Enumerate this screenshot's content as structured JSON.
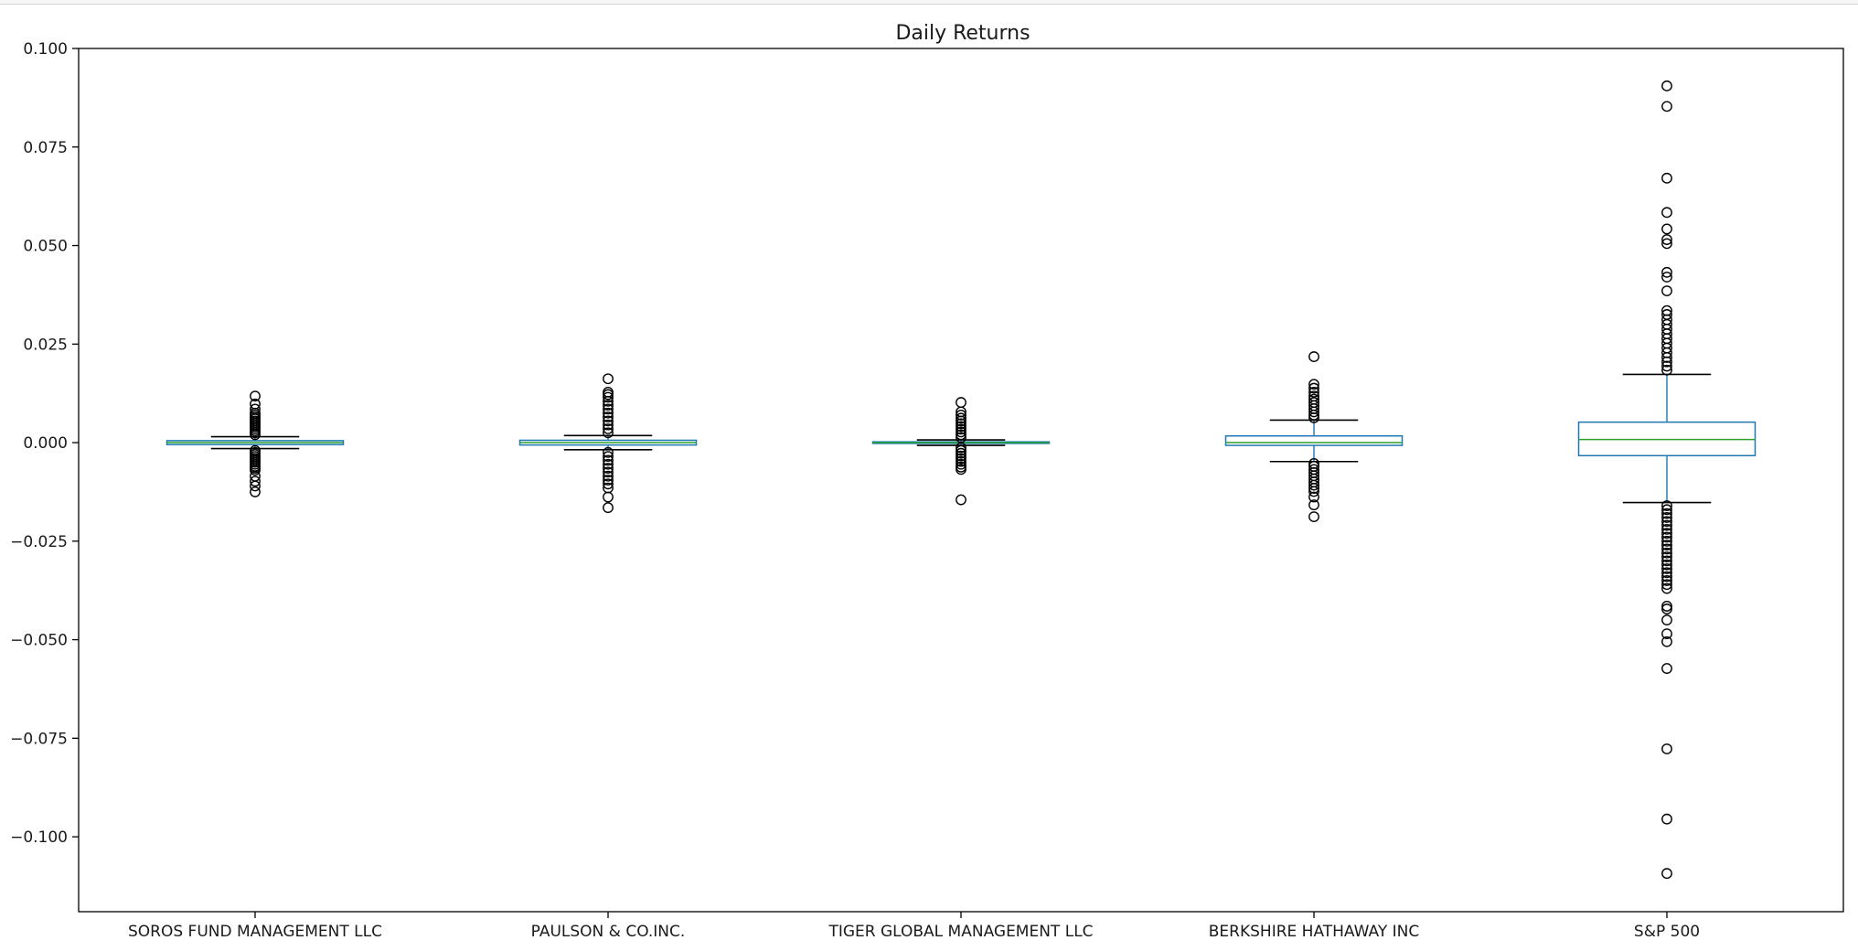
{
  "chart_data": {
    "type": "box",
    "title": "Daily Returns",
    "xlabel": "",
    "ylabel": "",
    "ylim": [
      -0.119,
      0.1
    ],
    "yticks": [
      {
        "value": 0.1,
        "label": "0.100"
      },
      {
        "value": 0.075,
        "label": "0.075"
      },
      {
        "value": 0.05,
        "label": "0.050"
      },
      {
        "value": 0.025,
        "label": "0.025"
      },
      {
        "value": 0.0,
        "label": "0.000"
      },
      {
        "value": -0.025,
        "label": "−0.025"
      },
      {
        "value": -0.05,
        "label": "−0.050"
      },
      {
        "value": -0.075,
        "label": "−0.075"
      },
      {
        "value": -0.1,
        "label": "−0.100"
      }
    ],
    "grid": false,
    "colors": {
      "box": "#1f77b4",
      "median": "#2ca02c",
      "whisker": "#000000",
      "flier": "#000000"
    },
    "series": [
      {
        "name": "SOROS FUND MANAGEMENT LLC",
        "q1": -0.0005,
        "median": 0.0,
        "q3": 0.0005,
        "whisker_low": -0.0015,
        "whisker_high": 0.0015,
        "fliers": [
          0.0118,
          0.0098,
          0.0085,
          0.0075,
          0.007,
          0.0065,
          0.006,
          0.0055,
          0.005,
          0.0045,
          0.004,
          0.0035,
          0.003,
          0.0025,
          0.002,
          -0.002,
          -0.0025,
          -0.003,
          -0.0035,
          -0.004,
          -0.0045,
          -0.005,
          -0.0055,
          -0.006,
          -0.0065,
          -0.007,
          -0.0085,
          -0.0098,
          -0.011,
          -0.0125
        ]
      },
      {
        "name": "PAULSON & CO.INC.",
        "q1": -0.0006,
        "median": 0.0,
        "q3": 0.0006,
        "whisker_low": -0.0018,
        "whisker_high": 0.0018,
        "fliers": [
          0.0162,
          0.0128,
          0.0122,
          0.0115,
          0.0105,
          0.0095,
          0.0085,
          0.0075,
          0.0065,
          0.0055,
          0.0045,
          0.0035,
          0.0025,
          -0.0025,
          -0.0035,
          -0.0045,
          -0.0055,
          -0.0065,
          -0.0075,
          -0.0085,
          -0.0095,
          -0.0105,
          -0.0115,
          -0.0138,
          -0.0165
        ]
      },
      {
        "name": "TIGER GLOBAL MANAGEMENT LLC",
        "q1": -0.0002,
        "median": 0.0,
        "q3": 0.0002,
        "whisker_low": -0.0007,
        "whisker_high": 0.0007,
        "fliers": [
          0.0102,
          0.0078,
          0.007,
          0.0062,
          0.0055,
          0.0048,
          0.0041,
          0.0034,
          0.0027,
          0.002,
          0.0013,
          -0.0013,
          -0.002,
          -0.0027,
          -0.0034,
          -0.0041,
          -0.0048,
          -0.0055,
          -0.0062,
          -0.0068,
          -0.0145
        ]
      },
      {
        "name": "BERKSHIRE HATHAWAY INC",
        "q1": -0.0007,
        "median": 0.0,
        "q3": 0.0017,
        "whisker_low": -0.0048,
        "whisker_high": 0.0057,
        "fliers": [
          0.0218,
          0.0148,
          0.0138,
          0.0128,
          0.0118,
          0.011,
          0.0102,
          0.0094,
          0.0086,
          0.0078,
          0.007,
          0.0063,
          -0.0053,
          -0.006,
          -0.0068,
          -0.0076,
          -0.0084,
          -0.0092,
          -0.01,
          -0.0108,
          -0.0116,
          -0.0124,
          -0.0138,
          -0.0158,
          -0.0188
        ]
      },
      {
        "name": "S&P 500",
        "q1": -0.0033,
        "median": 0.0008,
        "q3": 0.0052,
        "whisker_low": -0.0152,
        "whisker_high": 0.0173,
        "fliers": [
          0.0905,
          0.0853,
          0.0671,
          0.0584,
          0.0542,
          0.0515,
          0.0505,
          0.0432,
          0.042,
          0.0385,
          0.0335,
          0.0325,
          0.0312,
          0.03,
          0.0288,
          0.0276,
          0.0264,
          0.0252,
          0.024,
          0.0228,
          0.0216,
          0.0205,
          0.0194,
          0.0184,
          -0.016,
          -0.017,
          -0.018,
          -0.019,
          -0.02,
          -0.021,
          -0.022,
          -0.023,
          -0.024,
          -0.025,
          -0.026,
          -0.027,
          -0.028,
          -0.029,
          -0.03,
          -0.031,
          -0.032,
          -0.033,
          -0.034,
          -0.035,
          -0.036,
          -0.037,
          -0.0415,
          -0.0422,
          -0.045,
          -0.0485,
          -0.0505,
          -0.0573,
          -0.0777,
          -0.0955,
          -0.1093
        ]
      }
    ]
  }
}
